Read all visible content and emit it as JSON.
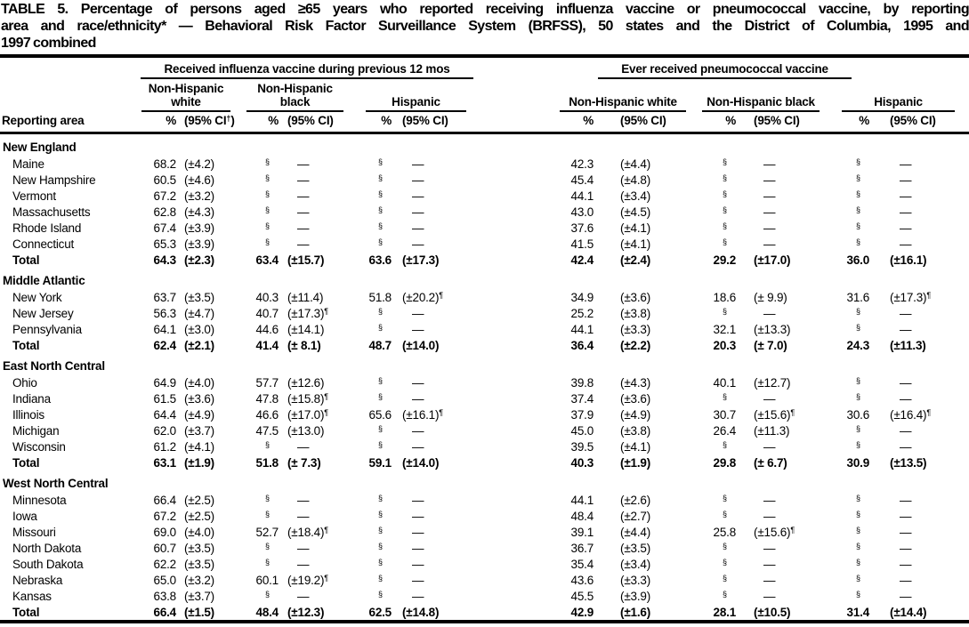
{
  "title_lines": [
    "TABLE 5. Percentage of persons aged ≥65 years who reported receiving influenza vaccine or pneumococcal vaccine, by reporting",
    "area and race/ethnicity* — Behavioral Risk Factor Surveillance System (BRFSS), 50 states and the District of Columbia, 1995 and",
    "1997 combined"
  ],
  "table": {
    "row_header": "Reporting area",
    "groups": [
      {
        "label": "Received influenza vaccine during previous 12 mos",
        "subgroups": [
          {
            "label": "Non-Hispanic white",
            "pct": "%",
            "ci": "(95% CI†)"
          },
          {
            "label": "Non-Hispanic black",
            "pct": "%",
            "ci": "(95% CI)"
          },
          {
            "label": "Hispanic",
            "pct": "%",
            "ci": "(95% CI)"
          }
        ]
      },
      {
        "label": "Ever received pneumococcal vaccine",
        "subgroups": [
          {
            "label": "Non-Hispanic white",
            "pct": "%",
            "ci": "(95% CI)"
          },
          {
            "label": "Non-Hispanic black",
            "pct": "%",
            "ci": "(95% CI)"
          },
          {
            "label": "Hispanic",
            "pct": "%",
            "ci": "(95% CI)"
          }
        ]
      }
    ],
    "sections": [
      {
        "name": "New England",
        "rows": [
          {
            "area": "Maine",
            "total": false,
            "values": [
              "68.2",
              "(±4.2)",
              "§",
              "—",
              "§",
              "—",
              "42.3",
              "(±4.4)",
              "§",
              "—",
              "§",
              "—"
            ]
          },
          {
            "area": "New Hampshire",
            "total": false,
            "values": [
              "60.5",
              "(±4.6)",
              "§",
              "—",
              "§",
              "—",
              "45.4",
              "(±4.8)",
              "§",
              "—",
              "§",
              "—"
            ]
          },
          {
            "area": "Vermont",
            "total": false,
            "values": [
              "67.2",
              "(±3.2)",
              "§",
              "—",
              "§",
              "—",
              "44.1",
              "(±3.4)",
              "§",
              "—",
              "§",
              "—"
            ]
          },
          {
            "area": "Massachusetts",
            "total": false,
            "values": [
              "62.8",
              "(±4.3)",
              "§",
              "—",
              "§",
              "—",
              "43.0",
              "(±4.5)",
              "§",
              "—",
              "§",
              "—"
            ]
          },
          {
            "area": "Rhode Island",
            "total": false,
            "values": [
              "67.4",
              "(±3.9)",
              "§",
              "—",
              "§",
              "—",
              "37.6",
              "(±4.1)",
              "§",
              "—",
              "§",
              "—"
            ]
          },
          {
            "area": "Connecticut",
            "total": false,
            "values": [
              "65.3",
              "(±3.9)",
              "§",
              "—",
              "§",
              "—",
              "41.5",
              "(±4.1)",
              "§",
              "—",
              "§",
              "—"
            ]
          },
          {
            "area": "Total",
            "total": true,
            "values": [
              "64.3",
              "(±2.3)",
              "63.4",
              "(±15.7)",
              "63.6",
              "(±17.3)",
              "42.4",
              "(±2.4)",
              "29.2",
              "(±17.0)",
              "36.0",
              "(±16.1)"
            ]
          }
        ]
      },
      {
        "name": "Middle Atlantic",
        "rows": [
          {
            "area": "New York",
            "total": false,
            "values": [
              "63.7",
              "(±3.5)",
              "40.3",
              "(±11.4)",
              "51.8",
              "(±20.2)¶",
              "34.9",
              "(±3.6)",
              "18.6",
              "(± 9.9)",
              "31.6",
              "(±17.3)¶"
            ]
          },
          {
            "area": "New Jersey",
            "total": false,
            "values": [
              "56.3",
              "(±4.7)",
              "40.7",
              "(±17.3)¶",
              "§",
              "—",
              "25.2",
              "(±3.8)",
              "§",
              "—",
              "§",
              "—"
            ]
          },
          {
            "area": "Pennsylvania",
            "total": false,
            "values": [
              "64.1",
              "(±3.0)",
              "44.6",
              "(±14.1)",
              "§",
              "—",
              "44.1",
              "(±3.3)",
              "32.1",
              "(±13.3)",
              "§",
              "—"
            ]
          },
          {
            "area": "Total",
            "total": true,
            "values": [
              "62.4",
              "(±2.1)",
              "41.4",
              "(± 8.1)",
              "48.7",
              "(±14.0)",
              "36.4",
              "(±2.2)",
              "20.3",
              "(± 7.0)",
              "24.3",
              "(±11.3)"
            ]
          }
        ]
      },
      {
        "name": "East North Central",
        "rows": [
          {
            "area": "Ohio",
            "total": false,
            "values": [
              "64.9",
              "(±4.0)",
              "57.7",
              "(±12.6)",
              "§",
              "—",
              "39.8",
              "(±4.3)",
              "40.1",
              "(±12.7)",
              "§",
              "—"
            ]
          },
          {
            "area": "Indiana",
            "total": false,
            "values": [
              "61.5",
              "(±3.6)",
              "47.8",
              "(±15.8)¶",
              "§",
              "—",
              "37.4",
              "(±3.6)",
              "§",
              "—",
              "§",
              "—"
            ]
          },
          {
            "area": "Illinois",
            "total": false,
            "values": [
              "64.4",
              "(±4.9)",
              "46.6",
              "(±17.0)¶",
              "65.6",
              "(±16.1)¶",
              "37.9",
              "(±4.9)",
              "30.7",
              "(±15.6)¶",
              "30.6",
              "(±16.4)¶"
            ]
          },
          {
            "area": "Michigan",
            "total": false,
            "values": [
              "62.0",
              "(±3.7)",
              "47.5",
              "(±13.0)",
              "§",
              "—",
              "45.0",
              "(±3.8)",
              "26.4",
              "(±11.3)",
              "§",
              "—"
            ]
          },
          {
            "area": "Wisconsin",
            "total": false,
            "values": [
              "61.2",
              "(±4.1)",
              "§",
              "—",
              "§",
              "—",
              "39.5",
              "(±4.1)",
              "§",
              "—",
              "§",
              "—"
            ]
          },
          {
            "area": "Total",
            "total": true,
            "values": [
              "63.1",
              "(±1.9)",
              "51.8",
              "(± 7.3)",
              "59.1",
              "(±14.0)",
              "40.3",
              "(±1.9)",
              "29.8",
              "(± 6.7)",
              "30.9",
              "(±13.5)"
            ]
          }
        ]
      },
      {
        "name": "West North Central",
        "rows": [
          {
            "area": "Minnesota",
            "total": false,
            "values": [
              "66.4",
              "(±2.5)",
              "§",
              "—",
              "§",
              "—",
              "44.1",
              "(±2.6)",
              "§",
              "—",
              "§",
              "—"
            ]
          },
          {
            "area": "Iowa",
            "total": false,
            "values": [
              "67.2",
              "(±2.5)",
              "§",
              "—",
              "§",
              "—",
              "48.4",
              "(±2.7)",
              "§",
              "—",
              "§",
              "—"
            ]
          },
          {
            "area": "Missouri",
            "total": false,
            "values": [
              "69.0",
              "(±4.0)",
              "52.7",
              "(±18.4)¶",
              "§",
              "—",
              "39.1",
              "(±4.4)",
              "25.8",
              "(±15.6)¶",
              "§",
              "—"
            ]
          },
          {
            "area": "North Dakota",
            "total": false,
            "values": [
              "60.7",
              "(±3.5)",
              "§",
              "—",
              "§",
              "—",
              "36.7",
              "(±3.5)",
              "§",
              "—",
              "§",
              "—"
            ]
          },
          {
            "area": "South Dakota",
            "total": false,
            "values": [
              "62.2",
              "(±3.5)",
              "§",
              "—",
              "§",
              "—",
              "35.4",
              "(±3.4)",
              "§",
              "—",
              "§",
              "—"
            ]
          },
          {
            "area": "Nebraska",
            "total": false,
            "values": [
              "65.0",
              "(±3.2)",
              "60.1",
              "(±19.2)¶",
              "§",
              "—",
              "43.6",
              "(±3.3)",
              "§",
              "—",
              "§",
              "—"
            ]
          },
          {
            "area": "Kansas",
            "total": false,
            "values": [
              "63.8",
              "(±3.7)",
              "§",
              "—",
              "§",
              "—",
              "45.5",
              "(±3.9)",
              "§",
              "—",
              "§",
              "—"
            ]
          },
          {
            "area": "Total",
            "total": true,
            "values": [
              "66.4",
              "(±1.5)",
              "48.4",
              "(±12.3)",
              "62.5",
              "(±14.8)",
              "42.9",
              "(±1.6)",
              "28.1",
              "(±10.5)",
              "31.4",
              "(±14.4)"
            ]
          }
        ]
      }
    ]
  }
}
